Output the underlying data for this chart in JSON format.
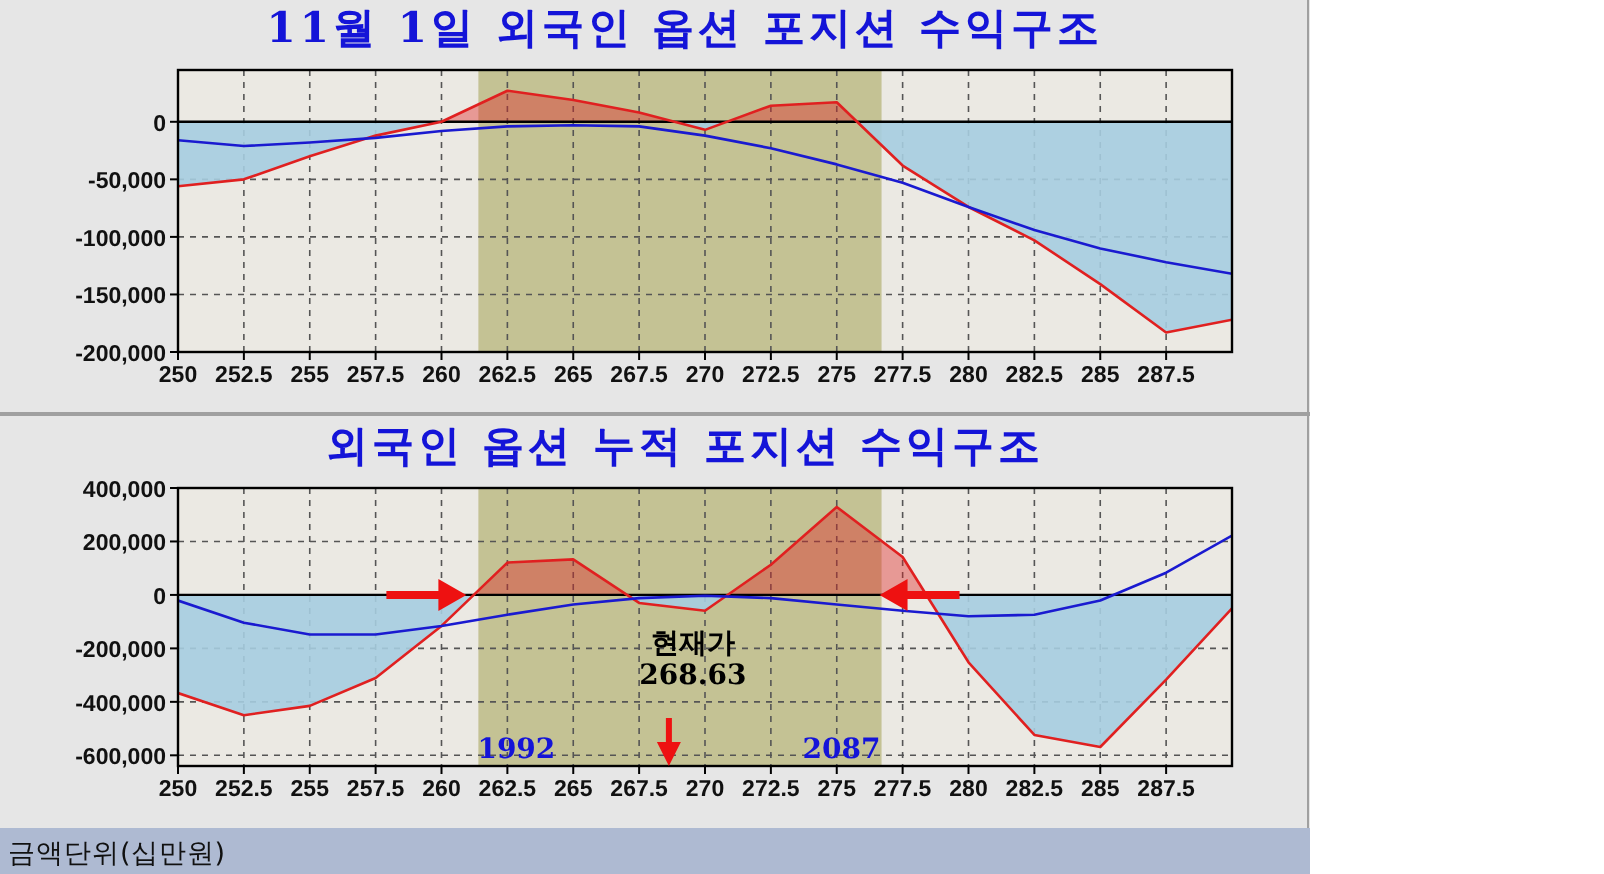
{
  "chart_data": [
    {
      "type": "line",
      "title": "11월 1일 외국인 옵션 포지션 수익구조",
      "x": [
        250,
        252.5,
        255,
        257.5,
        260,
        262.5,
        265,
        267.5,
        270,
        272.5,
        275,
        277.5,
        280,
        282.5,
        285,
        287.5,
        290
      ],
      "series": [
        {
          "type": "area",
          "color": "#e02020",
          "values": [
            -56000,
            -50000,
            -30000,
            -12000,
            0,
            27000,
            19000,
            8000,
            -7000,
            14000,
            17000,
            -38000,
            -74000,
            -103000,
            -141000,
            -183000,
            -172000
          ]
        },
        {
          "type": "line",
          "color": "#1a1ad0",
          "values": [
            -16000,
            -21000,
            -18000,
            -14000,
            -8000,
            -4000,
            -3000,
            -4000,
            -12000,
            -23000,
            -37000,
            -53000,
            -74000,
            -94000,
            -110000,
            -122000,
            -132000
          ]
        }
      ],
      "xlim": [
        250,
        290
      ],
      "xticks": [
        250,
        252.5,
        255,
        257.5,
        260,
        262.5,
        265,
        267.5,
        270,
        272.5,
        275,
        277.5,
        280,
        282.5,
        285,
        287.5
      ],
      "ylim": [
        -200000,
        45000
      ],
      "yticks": [
        {
          "value": 0,
          "label": "0"
        },
        {
          "value": -50000,
          "label": "-50,000"
        },
        {
          "value": -100000,
          "label": "-100,000"
        },
        {
          "value": -150000,
          "label": "-150,000"
        },
        {
          "value": -200000,
          "label": "-200,000"
        }
      ],
      "bands": [
        {
          "axis": "x",
          "from": 261.4,
          "to": 276.7,
          "color": "#b7b47a"
        }
      ],
      "ref_lines": [
        {
          "axis": "y",
          "value": 0,
          "color": "#000000"
        }
      ],
      "grid": true,
      "marker": "none",
      "line_style": "solid"
    },
    {
      "type": "line",
      "title": "외국인 옵션 누적 포지션 수익구조",
      "x": [
        250,
        252.5,
        255,
        257.5,
        260,
        262.5,
        265,
        267.5,
        270,
        272.5,
        275,
        277.5,
        280,
        282.5,
        285,
        287.5,
        290
      ],
      "series": [
        {
          "type": "area",
          "color": "#e02020",
          "values": [
            -367000,
            -450000,
            -415000,
            -311000,
            -116000,
            121000,
            133000,
            -30000,
            -59000,
            113000,
            329000,
            142000,
            -252000,
            -524000,
            -569000,
            -317000,
            -50000
          ]
        },
        {
          "type": "line",
          "color": "#1a1ad0",
          "values": [
            -21000,
            -104000,
            -148000,
            -148000,
            -116000,
            -74000,
            -36000,
            -12000,
            -3000,
            -12000,
            -36000,
            -59000,
            -80000,
            -74000,
            -21000,
            83000,
            222000
          ]
        }
      ],
      "xlim": [
        250,
        290
      ],
      "xticks": [
        250,
        252.5,
        255,
        257.5,
        260,
        262.5,
        265,
        267.5,
        270,
        272.5,
        275,
        277.5,
        280,
        282.5,
        285,
        287.5
      ],
      "ylim": [
        -640000,
        400000
      ],
      "yticks": [
        {
          "value": 400000,
          "label": "400,000"
        },
        {
          "value": 200000,
          "label": "200,000"
        },
        {
          "value": 0,
          "label": "0"
        },
        {
          "value": -200000,
          "label": "-200,000"
        },
        {
          "value": -400000,
          "label": "-400,000"
        },
        {
          "value": -600000,
          "label": "-600,000"
        }
      ],
      "bands": [
        {
          "axis": "x",
          "from": 261.4,
          "to": 276.7,
          "color": "#b7b47a"
        }
      ],
      "ref_lines": [
        {
          "axis": "y",
          "value": 0,
          "color": "#000000"
        }
      ],
      "annotations": [
        "1992",
        "2087",
        {
          "text": "현재가\n268.63",
          "x": 268.63,
          "y": -640000
        },
        "금액단위(십만원)"
      ],
      "grid": true,
      "marker": "none",
      "line_style": "solid"
    }
  ]
}
